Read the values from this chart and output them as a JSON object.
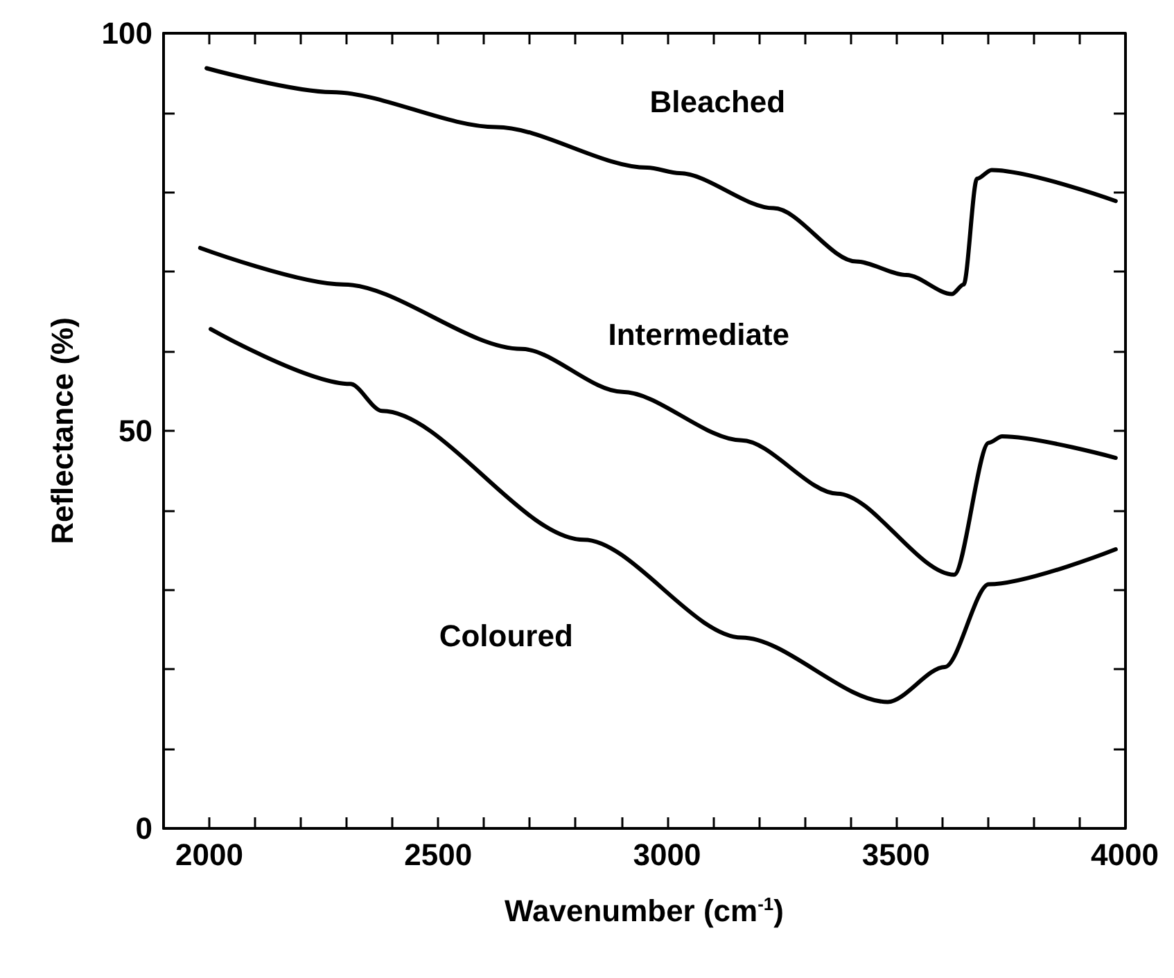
{
  "chart_data": {
    "type": "line",
    "xlabel": "Wavenumber (cm$^{-1}$)",
    "ylabel": "Reflectance (%)",
    "xlim": [
      1900,
      4000
    ],
    "ylim": [
      0,
      100
    ],
    "xticks": [
      2000,
      {
        "value": 2100,
        "label": null
      },
      {
        "value": 2200,
        "label": null
      },
      {
        "value": 2300,
        "label": null
      },
      {
        "value": 2400,
        "label": null
      },
      2500,
      {
        "value": 2600,
        "label": null
      },
      {
        "value": 2700,
        "label": null
      },
      {
        "value": 2800,
        "label": null
      },
      {
        "value": 2900,
        "label": null
      },
      3000,
      {
        "value": 3100,
        "label": null
      },
      {
        "value": 3200,
        "label": null
      },
      {
        "value": 3300,
        "label": null
      },
      {
        "value": 3400,
        "label": null
      },
      3500,
      {
        "value": 3600,
        "label": null
      },
      {
        "value": 3700,
        "label": null
      },
      {
        "value": 3800,
        "label": null
      },
      {
        "value": 3900,
        "label": null
      },
      4000
    ],
    "yticks": [
      0,
      {
        "value": 10,
        "label": null
      },
      {
        "value": 20,
        "label": null
      },
      {
        "value": 30,
        "label": null
      },
      {
        "value": 40,
        "label": null
      },
      50,
      {
        "value": 60,
        "label": null
      },
      {
        "value": 70,
        "label": null
      },
      {
        "value": 80,
        "label": null
      },
      {
        "value": 90,
        "label": null
      },
      100
    ],
    "grid": false,
    "legend": false,
    "marker": "none",
    "line_style": "solid",
    "series": [
      {
        "name": "Bleached",
        "color": "#000000",
        "x": [
          1994,
          2267,
          2627,
          2957,
          3027,
          3233,
          3413,
          3523,
          3622,
          3648,
          3677,
          3709,
          3980
        ],
        "values": [
          95.6,
          92.6,
          88.2,
          83.1,
          82.4,
          78.0,
          71.3,
          69.6,
          67.2,
          68.4,
          81.7,
          82.8,
          78.9
        ]
      },
      {
        "name": "Intermediate",
        "color": "#000000",
        "x": [
          1980,
          2293,
          2682,
          2902,
          3163,
          3372,
          3627,
          3703,
          3732,
          3980
        ],
        "values": [
          73.0,
          68.4,
          60.3,
          54.9,
          48.8,
          42.1,
          31.9,
          48.5,
          49.3,
          46.6
        ]
      },
      {
        "name": "Coloured",
        "color": "#000000",
        "x": [
          2003,
          2308,
          2377,
          2818,
          3163,
          3482,
          3607,
          3703,
          3980
        ],
        "values": [
          62.8,
          55.9,
          52.5,
          36.3,
          24.0,
          15.9,
          20.3,
          30.7,
          35.1
        ]
      }
    ]
  }
}
